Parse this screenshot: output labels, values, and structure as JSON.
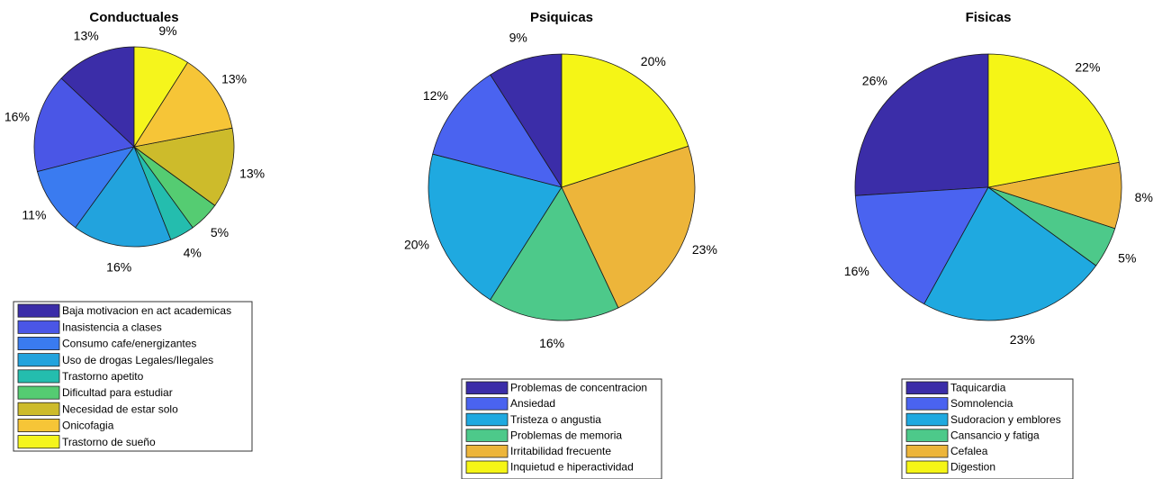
{
  "chart_data": [
    {
      "type": "pie",
      "title": "Conductuales",
      "labels": [
        "Baja motivacion en act academicas",
        "Inasistencia a clases",
        "Consumo cafe/energizantes",
        "Uso de drogas Legales/Ilegales",
        "Trastorno apetito",
        "Dificultad para estudiar",
        "Necesidad de estar solo",
        "Onicofagia",
        "Trastorno de sueño"
      ],
      "values": [
        13,
        16,
        11,
        16,
        4,
        5,
        13,
        13,
        9
      ],
      "value_labels": [
        "13%",
        "16%",
        "11%",
        "16%",
        "4%",
        "5%",
        "13%",
        "13%",
        "9%"
      ],
      "colors": [
        "#3B2DA8",
        "#4A56E6",
        "#3A7BF0",
        "#22A3DD",
        "#24BDAE",
        "#55CC72",
        "#CDBB2B",
        "#F6C537",
        "#F5F51C"
      ],
      "direction": "counterclockwise",
      "start": "top"
    },
    {
      "type": "pie",
      "title": "Psiquicas",
      "labels": [
        "Problemas de concentracion",
        "Ansiedad",
        "Tristeza o angustia",
        "Problemas de memoria",
        "Irritabilidad frecuente",
        "Inquietud e hiperactividad"
      ],
      "values": [
        9,
        12,
        20,
        16,
        23,
        20
      ],
      "value_labels": [
        "9%",
        "12%",
        "20%",
        "16%",
        "23%",
        "20%"
      ],
      "colors": [
        "#3B2DA8",
        "#4A63F0",
        "#1FA9E0",
        "#4DC98A",
        "#EDB53A",
        "#F5F516"
      ],
      "direction": "counterclockwise",
      "start": "top"
    },
    {
      "type": "pie",
      "title": "Fisicas",
      "labels": [
        "Taquicardia",
        "Somnolencia",
        "Sudoracion y emblores",
        "Cansancio y fatiga",
        "Cefalea",
        "Digestion"
      ],
      "values": [
        26,
        16,
        23,
        5,
        8,
        22
      ],
      "value_labels": [
        "26%",
        "16%",
        "23%",
        "5%",
        "8%",
        "22%"
      ],
      "colors": [
        "#3B2DA8",
        "#4A63F0",
        "#1FA9E0",
        "#4DC98A",
        "#EDB53A",
        "#F5F516"
      ],
      "direction": "counterclockwise",
      "start": "top"
    }
  ]
}
